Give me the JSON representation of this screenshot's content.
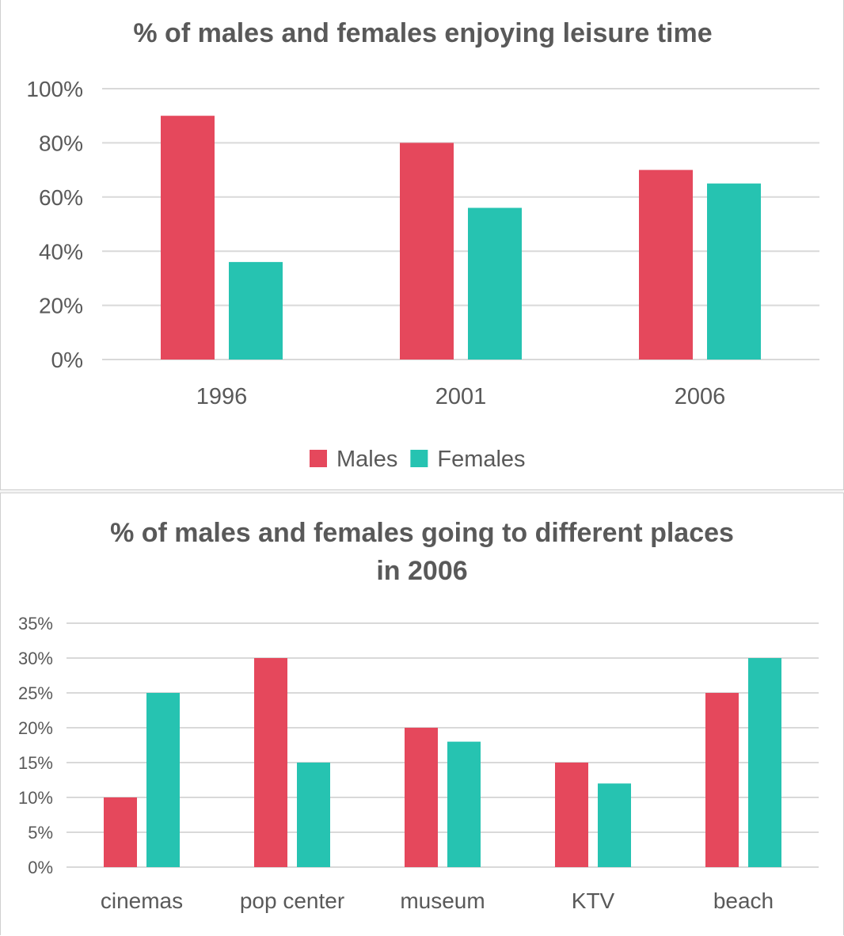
{
  "chart_data": [
    {
      "type": "bar",
      "title": "% of males and females enjoying leisure time",
      "categories": [
        "1996",
        "2001",
        "2006"
      ],
      "series": [
        {
          "name": "Males",
          "color": "#e5485c",
          "values": [
            90,
            80,
            70
          ]
        },
        {
          "name": "Females",
          "color": "#26c3b1",
          "values": [
            36,
            56,
            65
          ]
        }
      ],
      "ylim": [
        0,
        100
      ],
      "yticks": [
        "0%",
        "20%",
        "40%",
        "60%",
        "80%",
        "100%"
      ],
      "grid": true,
      "legend": "bottom"
    },
    {
      "type": "bar",
      "title": [
        "% of males and females going to different places",
        "in 2006"
      ],
      "categories": [
        "cinemas",
        "pop center",
        "museum",
        "KTV",
        "beach"
      ],
      "series": [
        {
          "name": "Males",
          "color": "#e5485c",
          "values": [
            10,
            30,
            20,
            15,
            25
          ]
        },
        {
          "name": "Females",
          "color": "#26c3b1",
          "values": [
            25,
            15,
            18,
            12,
            30
          ]
        }
      ],
      "ylim": [
        0,
        35
      ],
      "yticks": [
        "0%",
        "5%",
        "10%",
        "15%",
        "20%",
        "25%",
        "30%",
        "35%"
      ],
      "grid": true,
      "legend": "none"
    }
  ]
}
